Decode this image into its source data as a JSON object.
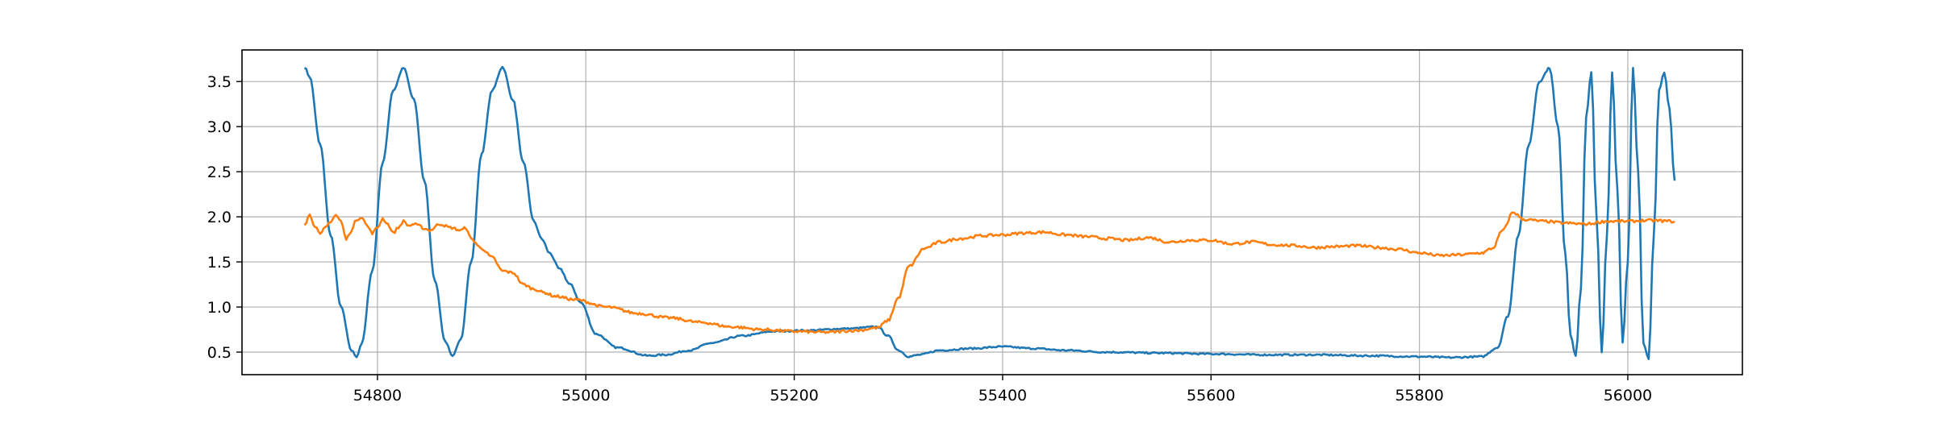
{
  "chart_data": {
    "type": "line",
    "title": "",
    "xlabel": "",
    "ylabel": "",
    "xlim": [
      54670,
      56110
    ],
    "ylim": [
      0.25,
      3.85
    ],
    "x_ticks": [
      54800,
      55000,
      55200,
      55400,
      55600,
      55800,
      56000
    ],
    "y_ticks": [
      0.5,
      1.0,
      1.5,
      2.0,
      2.5,
      3.0,
      3.5
    ],
    "x_tick_labels": [
      "54800",
      "55000",
      "55200",
      "55400",
      "55600",
      "55800",
      "56000"
    ],
    "y_tick_labels": [
      "0.5",
      "1.0",
      "1.5",
      "2.0",
      "2.5",
      "3.0",
      "3.5"
    ],
    "grid": true,
    "legend": "none",
    "series": [
      {
        "color": "#1f77b4",
        "x": [
          54730,
          54735,
          54745,
          54755,
          54765,
          54775,
          54780,
          54785,
          54795,
          54805,
          54815,
          54825,
          54835,
          54845,
          54855,
          54865,
          54872,
          54880,
          54890,
          54900,
          54910,
          54920,
          54930,
          54940,
          54950,
          54958,
          54965,
          54975,
          54985,
          54995,
          55010,
          55030,
          55060,
          55075,
          55100,
          55120,
          55150,
          55180,
          55210,
          55250,
          55280,
          55290,
          55300,
          55310,
          55320,
          55340,
          55370,
          55400,
          55430,
          55460,
          55500,
          55550,
          55600,
          55650,
          55700,
          55750,
          55800,
          55830,
          55860,
          55875,
          55885,
          55895,
          55905,
          55915,
          55925,
          55933,
          55940,
          55945,
          55950,
          55955,
          55960,
          55965,
          55970,
          55975,
          55980,
          55985,
          55990,
          55995,
          56000,
          56005,
          56010,
          56015,
          56020,
          56025,
          56030,
          56035,
          56040,
          56045
        ],
        "y": [
          3.66,
          3.55,
          2.8,
          1.8,
          1.0,
          0.52,
          0.45,
          0.6,
          1.4,
          2.6,
          3.4,
          3.65,
          3.3,
          2.4,
          1.3,
          0.62,
          0.45,
          0.65,
          1.5,
          2.7,
          3.4,
          3.66,
          3.3,
          2.6,
          1.95,
          1.75,
          1.6,
          1.42,
          1.25,
          1.05,
          0.7,
          0.55,
          0.46,
          0.47,
          0.52,
          0.6,
          0.68,
          0.73,
          0.74,
          0.76,
          0.78,
          0.68,
          0.52,
          0.45,
          0.47,
          0.52,
          0.54,
          0.56,
          0.54,
          0.52,
          0.5,
          0.49,
          0.48,
          0.47,
          0.47,
          0.46,
          0.45,
          0.44,
          0.45,
          0.55,
          0.9,
          1.8,
          2.8,
          3.5,
          3.65,
          3.0,
          1.6,
          0.7,
          0.45,
          1.2,
          3.1,
          3.6,
          2.0,
          0.5,
          1.8,
          3.6,
          2.3,
          0.6,
          1.5,
          3.65,
          2.5,
          0.6,
          0.43,
          1.8,
          3.4,
          3.6,
          3.2,
          2.4
        ]
      },
      {
        "color": "#ff7f0e",
        "x": [
          54730,
          54735,
          54740,
          54745,
          54750,
          54755,
          54760,
          54765,
          54770,
          54775,
          54780,
          54785,
          54790,
          54795,
          54800,
          54805,
          54810,
          54815,
          54820,
          54825,
          54830,
          54835,
          54840,
          54845,
          54850,
          54860,
          54870,
          54880,
          54885,
          54890,
          54900,
          54910,
          54920,
          54930,
          54940,
          54950,
          54960,
          54970,
          54990,
          55020,
          55050,
          55080,
          55110,
          55140,
          55170,
          55200,
          55230,
          55260,
          55280,
          55290,
          55300,
          55310,
          55325,
          55340,
          55360,
          55380,
          55400,
          55420,
          55440,
          55460,
          55480,
          55500,
          55520,
          55540,
          55560,
          55580,
          55600,
          55620,
          55640,
          55660,
          55680,
          55700,
          55720,
          55740,
          55760,
          55780,
          55800,
          55820,
          55840,
          55860,
          55870,
          55880,
          55890,
          55900,
          55920,
          55940,
          55960,
          55980,
          56000,
          56020,
          56045
        ],
        "y": [
          1.92,
          2.02,
          1.9,
          1.8,
          1.88,
          1.95,
          2.02,
          1.95,
          1.75,
          1.85,
          1.97,
          2.0,
          1.9,
          1.82,
          1.88,
          1.98,
          1.92,
          1.82,
          1.88,
          1.95,
          1.9,
          1.92,
          1.9,
          1.87,
          1.85,
          1.92,
          1.88,
          1.85,
          1.88,
          1.75,
          1.65,
          1.55,
          1.4,
          1.38,
          1.25,
          1.2,
          1.16,
          1.12,
          1.08,
          1.0,
          0.93,
          0.88,
          0.83,
          0.78,
          0.75,
          0.73,
          0.72,
          0.74,
          0.77,
          0.85,
          1.1,
          1.45,
          1.65,
          1.72,
          1.76,
          1.79,
          1.8,
          1.82,
          1.83,
          1.8,
          1.78,
          1.76,
          1.74,
          1.77,
          1.72,
          1.74,
          1.74,
          1.7,
          1.72,
          1.69,
          1.68,
          1.66,
          1.67,
          1.68,
          1.66,
          1.64,
          1.6,
          1.57,
          1.58,
          1.6,
          1.65,
          1.85,
          2.05,
          1.97,
          1.95,
          1.93,
          1.92,
          1.95,
          1.95,
          1.96,
          1.95
        ]
      }
    ]
  }
}
